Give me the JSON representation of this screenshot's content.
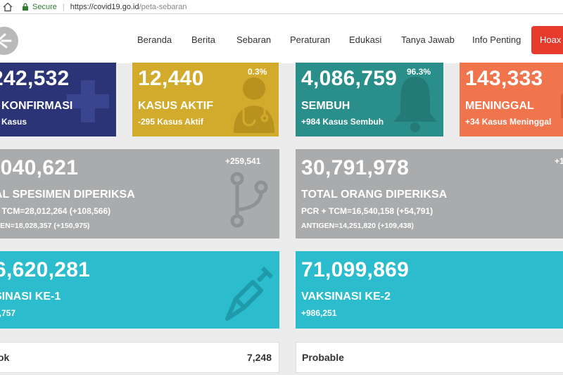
{
  "browser": {
    "secure_label": "Secure",
    "url_host": "https://covid19.go.id",
    "url_path": "/peta-sebaran"
  },
  "nav": {
    "items": [
      "Beranda",
      "Berita",
      "Sebaran",
      "Peraturan",
      "Edukasi",
      "Tanya Jawab",
      "Info Penting"
    ],
    "hoax_label": "Hoax B"
  },
  "cards": {
    "konfirmasi": {
      "value": "242,532",
      "label": "KONFIRMASI",
      "sub": "Kasus"
    },
    "aktif": {
      "value": "12,440",
      "percent": "0.3%",
      "label": "KASUS AKTIF",
      "sub": "-295 Kasus Aktif"
    },
    "sembuh": {
      "value": "4,086,759",
      "percent": "96.3%",
      "label": "SEMBUH",
      "sub": "+984 Kasus Sembuh"
    },
    "meninggal": {
      "value": "143,333",
      "label": "MENINGGAL",
      "sub": "+34 Kasus Meninggal"
    },
    "spesimen": {
      "value": ",040,621",
      "delta": "+259,541",
      "label": "AL SPESIMEN DIPERIKSA",
      "pcr": "+ TCM=28,012,264 (+108,566)",
      "antigen": "GEN=18,028,357 (+150,975)"
    },
    "orang": {
      "value": "30,791,978",
      "delta": "+1",
      "label": "TOTAL ORANG DIPERIKSA",
      "pcr": "PCR + TCM=16,540,158 (+54,791)",
      "antigen": "ANTIGEN=14,251,820 (+109,438)"
    },
    "vaksin1": {
      "value": "6,620,281",
      "label": "SINASI KE-1",
      "sub": "7,757"
    },
    "vaksin2": {
      "value": "71,099,869",
      "label": "VAKSINASI KE-2",
      "sub": "+986,251"
    },
    "probable_left": {
      "label": "ok",
      "value": "7,248"
    },
    "probable_right": {
      "label": "Probable"
    }
  },
  "colors": {
    "konfirmasi": "#2a3477",
    "aktif": "#d2ab2c",
    "sembuh": "#2a8f8a",
    "meninggal": "#f0744c",
    "spesimen": "#a9abad",
    "vaksin": "#2bbcce",
    "hoax": "#e53a2c"
  },
  "icons": {
    "konfirmasi": "plus-icon",
    "aktif": "doctor-icon",
    "sembuh": "bell-icon",
    "spesimen": "branch-icon",
    "vaksin": "syringe-icon"
  }
}
